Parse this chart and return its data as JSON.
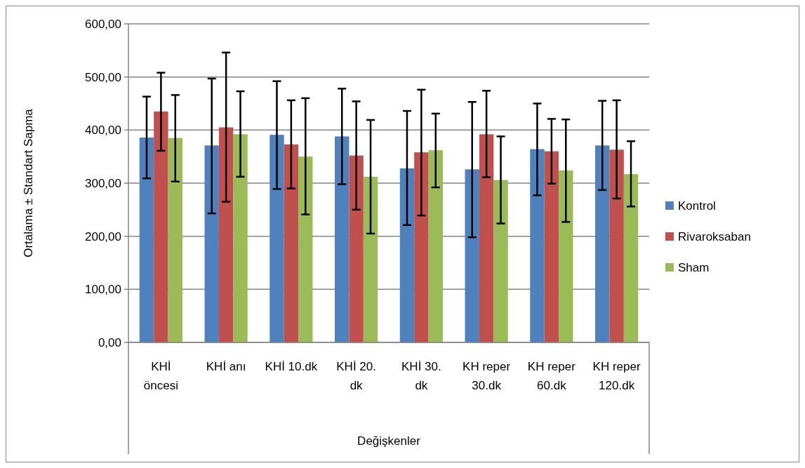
{
  "chart_data": {
    "type": "bar",
    "xlabel": "Değişkenler",
    "ylabel": "Ortalama ± Standart Sapma",
    "categories": [
      "KHİ öncesi",
      "KHİ anı",
      "KHİ 10.dk",
      "KHİ 20. dk",
      "KHİ 30. dk",
      "KH reper 30.dk",
      "KH reper 60.dk",
      "KH reper 120.dk"
    ],
    "series": [
      {
        "name": "Kontrol",
        "color": "#4f81bd",
        "values": [
          386,
          371,
          391,
          388,
          328,
          326,
          364,
          371
        ],
        "errors": [
          [
            309,
            463
          ],
          [
            243,
            497
          ],
          [
            289,
            492
          ],
          [
            298,
            478
          ],
          [
            221,
            436
          ],
          [
            198,
            453
          ],
          [
            277,
            450
          ],
          [
            287,
            455
          ]
        ]
      },
      {
        "name": "Rivaroksaban",
        "color": "#c0504d",
        "values": [
          435,
          405,
          373,
          352,
          358,
          392,
          360,
          363
        ],
        "errors": [
          [
            361,
            508
          ],
          [
            265,
            546
          ],
          [
            290,
            456
          ],
          [
            250,
            454
          ],
          [
            239,
            476
          ],
          [
            311,
            474
          ],
          [
            299,
            421
          ],
          [
            271,
            456
          ]
        ]
      },
      {
        "name": "Sham",
        "color": "#9bbb59",
        "values": [
          385,
          392,
          350,
          312,
          362,
          306,
          324,
          317
        ],
        "errors": [
          [
            303,
            466
          ],
          [
            312,
            473
          ],
          [
            241,
            460
          ],
          [
            205,
            419
          ],
          [
            292,
            431
          ],
          [
            224,
            388
          ],
          [
            227,
            420
          ],
          [
            256,
            379
          ]
        ]
      }
    ],
    "ylim": [
      0,
      600
    ],
    "yticks": [
      {
        "value": 0,
        "label": "0,00"
      },
      {
        "value": 100,
        "label": "100,00"
      },
      {
        "value": 200,
        "label": "200,00"
      },
      {
        "value": 300,
        "label": "300,00"
      },
      {
        "value": 400,
        "label": "400,00"
      },
      {
        "value": 500,
        "label": "500,00"
      },
      {
        "value": 600,
        "label": "600,00"
      }
    ],
    "grid": "y",
    "legend": "right"
  }
}
